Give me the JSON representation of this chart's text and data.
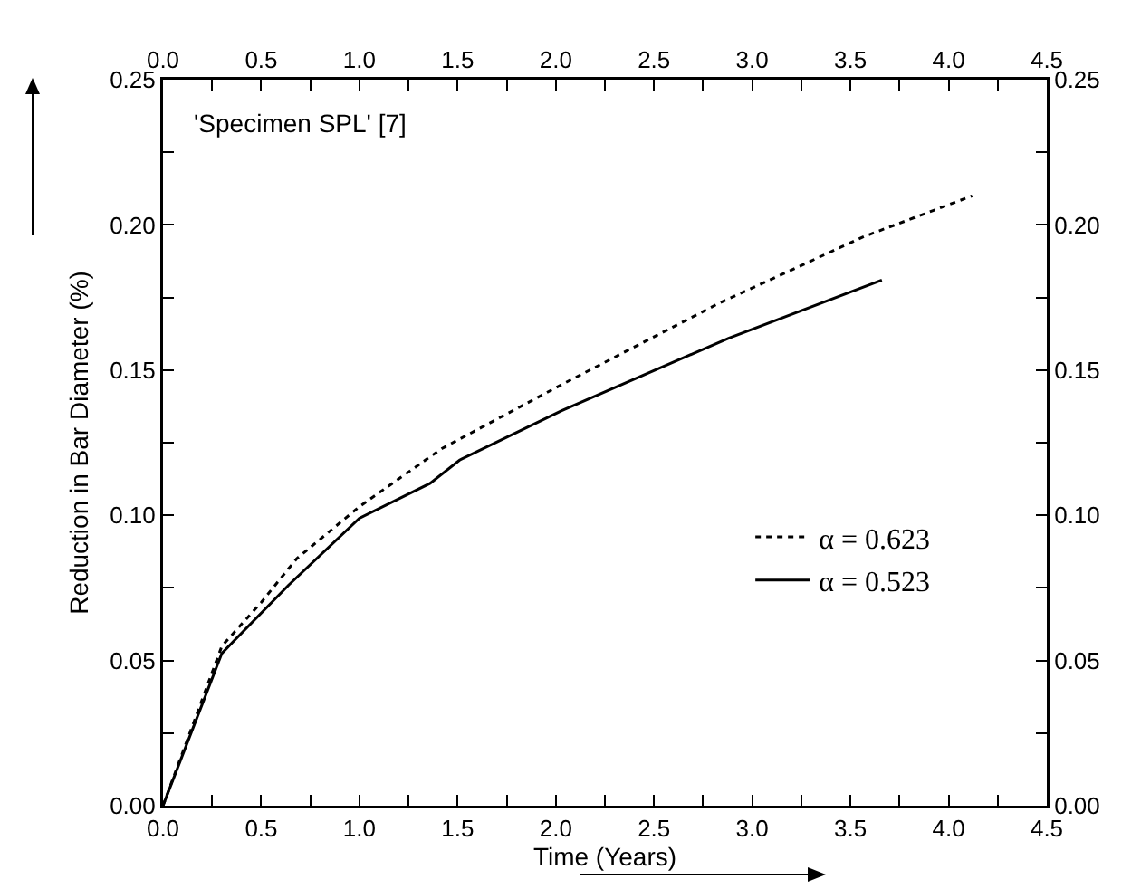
{
  "chart_data": {
    "type": "line",
    "xlabel": "Time (Years)",
    "ylabel": "Reduction in Bar Diameter (%)",
    "annotations": [
      "'Specimen SPL' [7]"
    ],
    "xlim": [
      0,
      4.5
    ],
    "xticks": [
      {
        "value": 0,
        "label": "0.0"
      },
      {
        "value": 0.25,
        "label": null
      },
      {
        "value": 0.5,
        "label": "0.5"
      },
      {
        "value": 0.75,
        "label": null
      },
      {
        "value": 1,
        "label": "1.0"
      },
      {
        "value": 1.25,
        "label": null
      },
      {
        "value": 1.5,
        "label": "1.5"
      },
      {
        "value": 1.75,
        "label": null
      },
      {
        "value": 2,
        "label": "2.0"
      },
      {
        "value": 2.25,
        "label": null
      },
      {
        "value": 2.5,
        "label": "2.5"
      },
      {
        "value": 2.75,
        "label": null
      },
      {
        "value": 3,
        "label": "3.0"
      },
      {
        "value": 3.25,
        "label": null
      },
      {
        "value": 3.5,
        "label": "3.5"
      },
      {
        "value": 3.75,
        "label": null
      },
      {
        "value": 4,
        "label": "4.0"
      },
      {
        "value": 4.25,
        "label": null
      },
      {
        "value": 4.5,
        "label": "4.5"
      }
    ],
    "x2lim": [
      0,
      4.5
    ],
    "x2ticks": [
      {
        "value": 0,
        "label": "0.0"
      },
      {
        "value": 0.25,
        "label": null
      },
      {
        "value": 0.5,
        "label": "0.5"
      },
      {
        "value": 0.75,
        "label": null
      },
      {
        "value": 1,
        "label": "1.0"
      },
      {
        "value": 1.25,
        "label": null
      },
      {
        "value": 1.5,
        "label": "1.5"
      },
      {
        "value": 1.75,
        "label": null
      },
      {
        "value": 2,
        "label": "2.0"
      },
      {
        "value": 2.25,
        "label": null
      },
      {
        "value": 2.5,
        "label": "2.5"
      },
      {
        "value": 2.75,
        "label": null
      },
      {
        "value": 3,
        "label": "3.0"
      },
      {
        "value": 3.25,
        "label": null
      },
      {
        "value": 3.5,
        "label": "3.5"
      },
      {
        "value": 3.75,
        "label": null
      },
      {
        "value": 4,
        "label": "4.0"
      },
      {
        "value": 4.25,
        "label": null
      },
      {
        "value": 4.5,
        "label": "4.5"
      }
    ],
    "ylim": [
      0,
      0.25
    ],
    "yticks": [
      {
        "value": 0,
        "label": "0.00"
      },
      {
        "value": 0.025,
        "label": null
      },
      {
        "value": 0.05,
        "label": "0.05"
      },
      {
        "value": 0.075,
        "label": null
      },
      {
        "value": 0.1,
        "label": "0.10"
      },
      {
        "value": 0.125,
        "label": null
      },
      {
        "value": 0.15,
        "label": "0.15"
      },
      {
        "value": 0.175,
        "label": null
      },
      {
        "value": 0.2,
        "label": "0.20"
      },
      {
        "value": 0.225,
        "label": null
      },
      {
        "value": 0.25,
        "label": "0.25"
      }
    ],
    "y2lim": [
      0,
      0.25
    ],
    "y2ticks": [
      {
        "value": 0,
        "label": "0.00"
      },
      {
        "value": 0.025,
        "label": null
      },
      {
        "value": 0.05,
        "label": "0.05"
      },
      {
        "value": 0.075,
        "label": null
      },
      {
        "value": 0.1,
        "label": "0.10"
      },
      {
        "value": 0.125,
        "label": null
      },
      {
        "value": 0.15,
        "label": "0.15"
      },
      {
        "value": 0.175,
        "label": null
      },
      {
        "value": 0.2,
        "label": "0.20"
      },
      {
        "value": 0.225,
        "label": null
      },
      {
        "value": 0.25,
        "label": "0.25"
      }
    ],
    "grid": false,
    "legend": "right",
    "marker": "none",
    "series": [
      {
        "name": "α = 0.623",
        "color": "#000000",
        "line_style": "dotted",
        "x": [
          0,
          0.3,
          0.5,
          0.68,
          1.0,
          1.42,
          2.03,
          2.83,
          3.57,
          4.12
        ],
        "values": [
          0,
          0.055,
          0.07,
          0.085,
          0.103,
          0.123,
          0.145,
          0.173,
          0.196,
          0.21
        ]
      },
      {
        "name": "α = 0.523",
        "color": "#000000",
        "line_style": "solid",
        "x": [
          0,
          0.3,
          0.64,
          1.0,
          1.36,
          1.51,
          2.03,
          2.88,
          3.66
        ],
        "values": [
          0,
          0.0525,
          0.076,
          0.099,
          0.111,
          0.119,
          0.136,
          0.161,
          0.181
        ]
      }
    ]
  }
}
